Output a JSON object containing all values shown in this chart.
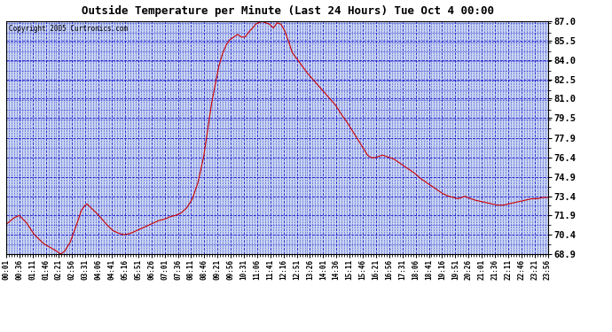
{
  "title": "Outside Temperature per Minute (Last 24 Hours) Tue Oct 4 00:00",
  "copyright": "Copyright 2005 Curtronics.com",
  "plot_bg_color": "#c8d4f0",
  "line_color": "#cc0000",
  "grid_color": "#0000cc",
  "ylim": [
    68.9,
    87.0
  ],
  "yticks": [
    68.9,
    70.4,
    71.9,
    73.4,
    74.9,
    76.4,
    77.9,
    79.5,
    81.0,
    82.5,
    84.0,
    85.5,
    87.0
  ],
  "xtick_labels": [
    "00:01",
    "00:36",
    "01:11",
    "01:46",
    "02:21",
    "02:56",
    "03:31",
    "04:06",
    "04:41",
    "05:16",
    "05:51",
    "06:26",
    "07:01",
    "07:36",
    "08:11",
    "08:46",
    "09:21",
    "09:56",
    "10:31",
    "11:06",
    "11:41",
    "12:16",
    "12:51",
    "13:26",
    "14:01",
    "14:36",
    "15:11",
    "15:46",
    "16:21",
    "16:56",
    "17:31",
    "18:06",
    "18:41",
    "19:16",
    "19:51",
    "20:26",
    "21:01",
    "21:36",
    "22:11",
    "22:46",
    "23:21",
    "23:56"
  ],
  "control_points": [
    [
      0,
      71.2
    ],
    [
      20,
      71.7
    ],
    [
      35,
      71.9
    ],
    [
      55,
      71.3
    ],
    [
      75,
      70.4
    ],
    [
      100,
      69.7
    ],
    [
      130,
      69.2
    ],
    [
      145,
      68.9
    ],
    [
      155,
      69.1
    ],
    [
      170,
      69.8
    ],
    [
      185,
      71.0
    ],
    [
      200,
      72.3
    ],
    [
      210,
      72.7
    ],
    [
      215,
      72.8
    ],
    [
      225,
      72.5
    ],
    [
      240,
      72.1
    ],
    [
      255,
      71.6
    ],
    [
      270,
      71.1
    ],
    [
      285,
      70.7
    ],
    [
      300,
      70.5
    ],
    [
      315,
      70.4
    ],
    [
      330,
      70.5
    ],
    [
      345,
      70.7
    ],
    [
      360,
      70.9
    ],
    [
      375,
      71.1
    ],
    [
      390,
      71.3
    ],
    [
      405,
      71.5
    ],
    [
      420,
      71.6
    ],
    [
      435,
      71.8
    ],
    [
      450,
      71.9
    ],
    [
      465,
      72.1
    ],
    [
      480,
      72.5
    ],
    [
      495,
      73.2
    ],
    [
      510,
      74.5
    ],
    [
      525,
      76.5
    ],
    [
      535,
      78.5
    ],
    [
      545,
      80.5
    ],
    [
      555,
      82.0
    ],
    [
      565,
      83.5
    ],
    [
      575,
      84.5
    ],
    [
      585,
      85.2
    ],
    [
      595,
      85.6
    ],
    [
      605,
      85.8
    ],
    [
      615,
      86.0
    ],
    [
      625,
      85.8
    ],
    [
      635,
      85.8
    ],
    [
      645,
      86.2
    ],
    [
      655,
      86.5
    ],
    [
      663,
      86.8
    ],
    [
      670,
      86.9
    ],
    [
      680,
      87.0
    ],
    [
      690,
      86.9
    ],
    [
      700,
      86.8
    ],
    [
      710,
      86.5
    ],
    [
      715,
      86.7
    ],
    [
      720,
      86.9
    ],
    [
      730,
      86.8
    ],
    [
      740,
      86.3
    ],
    [
      750,
      85.5
    ],
    [
      760,
      84.6
    ],
    [
      770,
      84.2
    ],
    [
      780,
      83.8
    ],
    [
      790,
      83.4
    ],
    [
      800,
      83.0
    ],
    [
      815,
      82.5
    ],
    [
      830,
      82.0
    ],
    [
      845,
      81.5
    ],
    [
      860,
      81.0
    ],
    [
      875,
      80.5
    ],
    [
      890,
      79.8
    ],
    [
      905,
      79.2
    ],
    [
      920,
      78.5
    ],
    [
      935,
      77.8
    ],
    [
      950,
      77.1
    ],
    [
      960,
      76.6
    ],
    [
      970,
      76.4
    ],
    [
      980,
      76.4
    ],
    [
      990,
      76.5
    ],
    [
      1000,
      76.6
    ],
    [
      1010,
      76.5
    ],
    [
      1020,
      76.4
    ],
    [
      1030,
      76.3
    ],
    [
      1040,
      76.1
    ],
    [
      1055,
      75.8
    ],
    [
      1070,
      75.5
    ],
    [
      1085,
      75.2
    ],
    [
      1100,
      74.8
    ],
    [
      1115,
      74.5
    ],
    [
      1130,
      74.2
    ],
    [
      1145,
      73.9
    ],
    [
      1160,
      73.6
    ],
    [
      1175,
      73.4
    ],
    [
      1190,
      73.3
    ],
    [
      1200,
      73.2
    ],
    [
      1210,
      73.3
    ],
    [
      1220,
      73.4
    ],
    [
      1225,
      73.3
    ],
    [
      1235,
      73.2
    ],
    [
      1245,
      73.1
    ],
    [
      1260,
      73.0
    ],
    [
      1275,
      72.9
    ],
    [
      1290,
      72.8
    ],
    [
      1305,
      72.7
    ],
    [
      1320,
      72.7
    ],
    [
      1335,
      72.8
    ],
    [
      1350,
      72.9
    ],
    [
      1365,
      73.0
    ],
    [
      1380,
      73.1
    ],
    [
      1395,
      73.2
    ],
    [
      1410,
      73.2
    ],
    [
      1425,
      73.3
    ],
    [
      1439,
      73.3
    ]
  ]
}
